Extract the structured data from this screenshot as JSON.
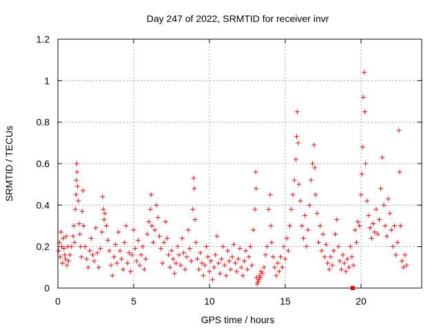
{
  "chart_data": {
    "type": "scatter",
    "title": "Day 247 of 2022, SRMTID for receiver invr",
    "xlabel": "GPS time / hours",
    "ylabel": "SRMTID / TECUs",
    "xlim": [
      0,
      24
    ],
    "ylim": [
      0,
      1.2
    ],
    "xticks": [
      0,
      5,
      10,
      15,
      20
    ],
    "yticks": [
      0,
      0.2,
      0.4,
      0.6,
      0.8,
      1,
      1.2
    ],
    "xtick_labels": [
      "0",
      "5",
      "10",
      "15",
      "20"
    ],
    "ytick_labels": [
      "0",
      "0.2",
      "0.4",
      "0.6",
      "0.8",
      "1",
      "1.2"
    ],
    "grid": true,
    "marker": "+",
    "color": "#ff0000",
    "highlight": {
      "x": 19.45,
      "y": 0.0,
      "marker": "square"
    },
    "series": [
      {
        "name": "SRMTID",
        "points": [
          [
            0.05,
            0.18
          ],
          [
            0.1,
            0.22
          ],
          [
            0.15,
            0.15
          ],
          [
            0.2,
            0.27
          ],
          [
            0.25,
            0.2
          ],
          [
            0.3,
            0.12
          ],
          [
            0.35,
            0.24
          ],
          [
            0.4,
            0.19
          ],
          [
            0.45,
            0.16
          ],
          [
            0.5,
            0.14
          ],
          [
            0.55,
            0.25
          ],
          [
            0.6,
            0.11
          ],
          [
            0.65,
            0.2
          ],
          [
            0.7,
            0.13
          ],
          [
            0.8,
            0.16
          ],
          [
            0.9,
            0.2
          ],
          [
            1.0,
            0.25
          ],
          [
            1.05,
            0.3
          ],
          [
            1.1,
            0.22
          ],
          [
            1.15,
            0.38
          ],
          [
            1.2,
            0.45
          ],
          [
            1.22,
            0.52
          ],
          [
            1.25,
            0.6
          ],
          [
            1.27,
            0.56
          ],
          [
            1.3,
            0.49
          ],
          [
            1.35,
            0.42
          ],
          [
            1.4,
            0.31
          ],
          [
            1.45,
            0.26
          ],
          [
            1.5,
            0.2
          ],
          [
            1.55,
            0.15
          ],
          [
            1.6,
            0.37
          ],
          [
            1.65,
            0.47
          ],
          [
            1.7,
            0.3
          ],
          [
            1.8,
            0.2
          ],
          [
            1.9,
            0.14
          ],
          [
            2.0,
            0.1
          ],
          [
            2.1,
            0.18
          ],
          [
            2.2,
            0.24
          ],
          [
            2.3,
            0.16
          ],
          [
            2.4,
            0.13
          ],
          [
            2.5,
            0.29
          ],
          [
            2.6,
            0.17
          ],
          [
            2.7,
            0.1
          ],
          [
            2.8,
            0.19
          ],
          [
            2.9,
            0.27
          ],
          [
            2.95,
            0.44
          ],
          [
            3.0,
            0.38
          ],
          [
            3.05,
            0.33
          ],
          [
            3.1,
            0.36
          ],
          [
            3.2,
            0.3
          ],
          [
            3.3,
            0.23
          ],
          [
            3.4,
            0.18
          ],
          [
            3.5,
            0.11
          ],
          [
            3.6,
            0.06
          ],
          [
            3.7,
            0.15
          ],
          [
            3.8,
            0.21
          ],
          [
            3.9,
            0.12
          ],
          [
            4.0,
            0.27
          ],
          [
            4.1,
            0.18
          ],
          [
            4.2,
            0.14
          ],
          [
            4.3,
            0.09
          ],
          [
            4.4,
            0.22
          ],
          [
            4.5,
            0.3
          ],
          [
            4.6,
            0.12
          ],
          [
            4.7,
            0.17
          ],
          [
            4.8,
            0.08
          ],
          [
            4.9,
            0.16
          ],
          [
            5.0,
            0.28
          ],
          [
            5.1,
            0.19
          ],
          [
            5.2,
            0.13
          ],
          [
            5.3,
            0.23
          ],
          [
            5.4,
            0.11
          ],
          [
            5.5,
            0.16
          ],
          [
            5.6,
            0.2
          ],
          [
            5.7,
            0.09
          ],
          [
            5.8,
            0.14
          ],
          [
            5.9,
            0.26
          ],
          [
            6.0,
            0.32
          ],
          [
            6.1,
            0.38
          ],
          [
            6.15,
            0.45
          ],
          [
            6.2,
            0.3
          ],
          [
            6.3,
            0.22
          ],
          [
            6.4,
            0.28
          ],
          [
            6.5,
            0.4
          ],
          [
            6.6,
            0.34
          ],
          [
            6.7,
            0.25
          ],
          [
            6.8,
            0.19
          ],
          [
            6.9,
            0.12
          ],
          [
            7.0,
            0.22
          ],
          [
            7.1,
            0.32
          ],
          [
            7.2,
            0.24
          ],
          [
            7.3,
            0.16
          ],
          [
            7.4,
            0.1
          ],
          [
            7.5,
            0.18
          ],
          [
            7.6,
            0.14
          ],
          [
            7.7,
            0.07
          ],
          [
            7.8,
            0.12
          ],
          [
            7.9,
            0.2
          ],
          [
            8.0,
            0.16
          ],
          [
            8.1,
            0.11
          ],
          [
            8.2,
            0.24
          ],
          [
            8.3,
            0.17
          ],
          [
            8.4,
            0.09
          ],
          [
            8.5,
            0.15
          ],
          [
            8.6,
            0.28
          ],
          [
            8.7,
            0.19
          ],
          [
            8.8,
            0.13
          ],
          [
            8.9,
            0.38
          ],
          [
            8.95,
            0.53
          ],
          [
            9.0,
            0.48
          ],
          [
            9.05,
            0.33
          ],
          [
            9.1,
            0.22
          ],
          [
            9.2,
            0.14
          ],
          [
            9.3,
            0.09
          ],
          [
            9.4,
            0.17
          ],
          [
            9.5,
            0.12
          ],
          [
            9.6,
            0.06
          ],
          [
            9.7,
            0.11
          ],
          [
            9.8,
            0.2
          ],
          [
            9.9,
            0.15
          ],
          [
            10.0,
            0.08
          ],
          [
            10.1,
            0.13
          ],
          [
            10.2,
            0.04
          ],
          [
            10.3,
            0.1
          ],
          [
            10.4,
            0.16
          ],
          [
            10.5,
            0.25
          ],
          [
            10.6,
            0.12
          ],
          [
            10.7,
            0.07
          ],
          [
            10.8,
            0.14
          ],
          [
            10.9,
            0.2
          ],
          [
            11.0,
            0.11
          ],
          [
            11.1,
            0.06
          ],
          [
            11.2,
            0.18
          ],
          [
            11.3,
            0.13
          ],
          [
            11.4,
            0.09
          ],
          [
            11.5,
            0.15
          ],
          [
            11.6,
            0.21
          ],
          [
            11.7,
            0.12
          ],
          [
            11.8,
            0.08
          ],
          [
            11.9,
            0.14
          ],
          [
            12.0,
            0.19
          ],
          [
            12.1,
            0.1
          ],
          [
            12.2,
            0.06
          ],
          [
            12.3,
            0.13
          ],
          [
            12.4,
            0.18
          ],
          [
            12.5,
            0.09
          ],
          [
            12.6,
            0.15
          ],
          [
            12.7,
            0.2
          ],
          [
            12.8,
            0.11
          ],
          [
            12.9,
            0.28
          ],
          [
            13.0,
            0.38
          ],
          [
            13.05,
            0.56
          ],
          [
            13.08,
            0.48
          ],
          [
            13.1,
            0.05
          ],
          [
            13.15,
            0.02
          ],
          [
            13.2,
            0.03
          ],
          [
            13.25,
            0.04
          ],
          [
            13.3,
            0.06
          ],
          [
            13.35,
            0.05
          ],
          [
            13.4,
            0.08
          ],
          [
            13.5,
            0.07
          ],
          [
            13.6,
            0.1
          ],
          [
            13.7,
            0.16
          ],
          [
            13.8,
            0.2
          ],
          [
            13.9,
            0.38
          ],
          [
            14.0,
            0.45
          ],
          [
            14.05,
            0.3
          ],
          [
            14.1,
            0.22
          ],
          [
            14.2,
            0.15
          ],
          [
            14.3,
            0.1
          ],
          [
            14.4,
            0.06
          ],
          [
            14.5,
            0.12
          ],
          [
            14.6,
            0.08
          ],
          [
            14.7,
            0.15
          ],
          [
            14.8,
            0.1
          ],
          [
            14.9,
            0.2
          ],
          [
            15.0,
            0.14
          ],
          [
            15.1,
            0.24
          ],
          [
            15.2,
            0.18
          ],
          [
            15.3,
            0.3
          ],
          [
            15.4,
            0.38
          ],
          [
            15.5,
            0.45
          ],
          [
            15.6,
            0.52
          ],
          [
            15.7,
            0.62
          ],
          [
            15.75,
            0.73
          ],
          [
            15.8,
            0.85
          ],
          [
            15.85,
            0.7
          ],
          [
            15.9,
            0.5
          ],
          [
            16.0,
            0.42
          ],
          [
            16.1,
            0.3
          ],
          [
            16.2,
            0.24
          ],
          [
            16.3,
            0.35
          ],
          [
            16.4,
            0.2
          ],
          [
            16.5,
            0.28
          ],
          [
            16.6,
            0.4
          ],
          [
            16.7,
            0.52
          ],
          [
            16.8,
            0.6
          ],
          [
            16.9,
            0.69
          ],
          [
            16.95,
            0.58
          ],
          [
            17.0,
            0.45
          ],
          [
            17.1,
            0.36
          ],
          [
            17.2,
            0.22
          ],
          [
            17.3,
            0.3
          ],
          [
            17.4,
            0.18
          ],
          [
            17.5,
            0.26
          ],
          [
            17.6,
            0.15
          ],
          [
            17.7,
            0.21
          ],
          [
            17.8,
            0.12
          ],
          [
            17.9,
            0.09
          ],
          [
            18.0,
            0.15
          ],
          [
            18.1,
            0.11
          ],
          [
            18.2,
            0.18
          ],
          [
            18.3,
            0.26
          ],
          [
            18.4,
            0.33
          ],
          [
            18.5,
            0.2
          ],
          [
            18.6,
            0.13
          ],
          [
            18.7,
            0.09
          ],
          [
            18.8,
            0.16
          ],
          [
            18.9,
            0.12
          ],
          [
            19.0,
            0.08
          ],
          [
            19.1,
            0.14
          ],
          [
            19.2,
            0.1
          ],
          [
            19.3,
            0.2
          ],
          [
            19.4,
            0.15
          ],
          [
            19.5,
            0.11
          ],
          [
            19.6,
            0.28
          ],
          [
            19.7,
            0.22
          ],
          [
            19.8,
            0.32
          ],
          [
            19.9,
            0.3
          ],
          [
            20.0,
            0.45
          ],
          [
            20.05,
            0.55
          ],
          [
            20.1,
            0.68
          ],
          [
            20.15,
            0.92
          ],
          [
            20.2,
            1.04
          ],
          [
            20.25,
            0.85
          ],
          [
            20.3,
            0.6
          ],
          [
            20.4,
            0.42
          ],
          [
            20.5,
            0.35
          ],
          [
            20.6,
            0.29
          ],
          [
            20.7,
            0.24
          ],
          [
            20.8,
            0.31
          ],
          [
            20.9,
            0.27
          ],
          [
            21.0,
            0.38
          ],
          [
            21.1,
            0.26
          ],
          [
            21.2,
            0.33
          ],
          [
            21.3,
            0.48
          ],
          [
            21.4,
            0.63
          ],
          [
            21.5,
            0.4
          ],
          [
            21.6,
            0.3
          ],
          [
            21.7,
            0.25
          ],
          [
            21.8,
            0.43
          ],
          [
            21.9,
            0.36
          ],
          [
            22.0,
            0.28
          ],
          [
            22.1,
            0.2
          ],
          [
            22.2,
            0.3
          ],
          [
            22.3,
            0.16
          ],
          [
            22.4,
            0.22
          ],
          [
            22.5,
            0.76
          ],
          [
            22.55,
            0.56
          ],
          [
            22.6,
            0.3
          ],
          [
            22.7,
            0.13
          ],
          [
            22.8,
            0.1
          ],
          [
            22.9,
            0.16
          ],
          [
            23.0,
            0.11
          ]
        ]
      }
    ]
  }
}
